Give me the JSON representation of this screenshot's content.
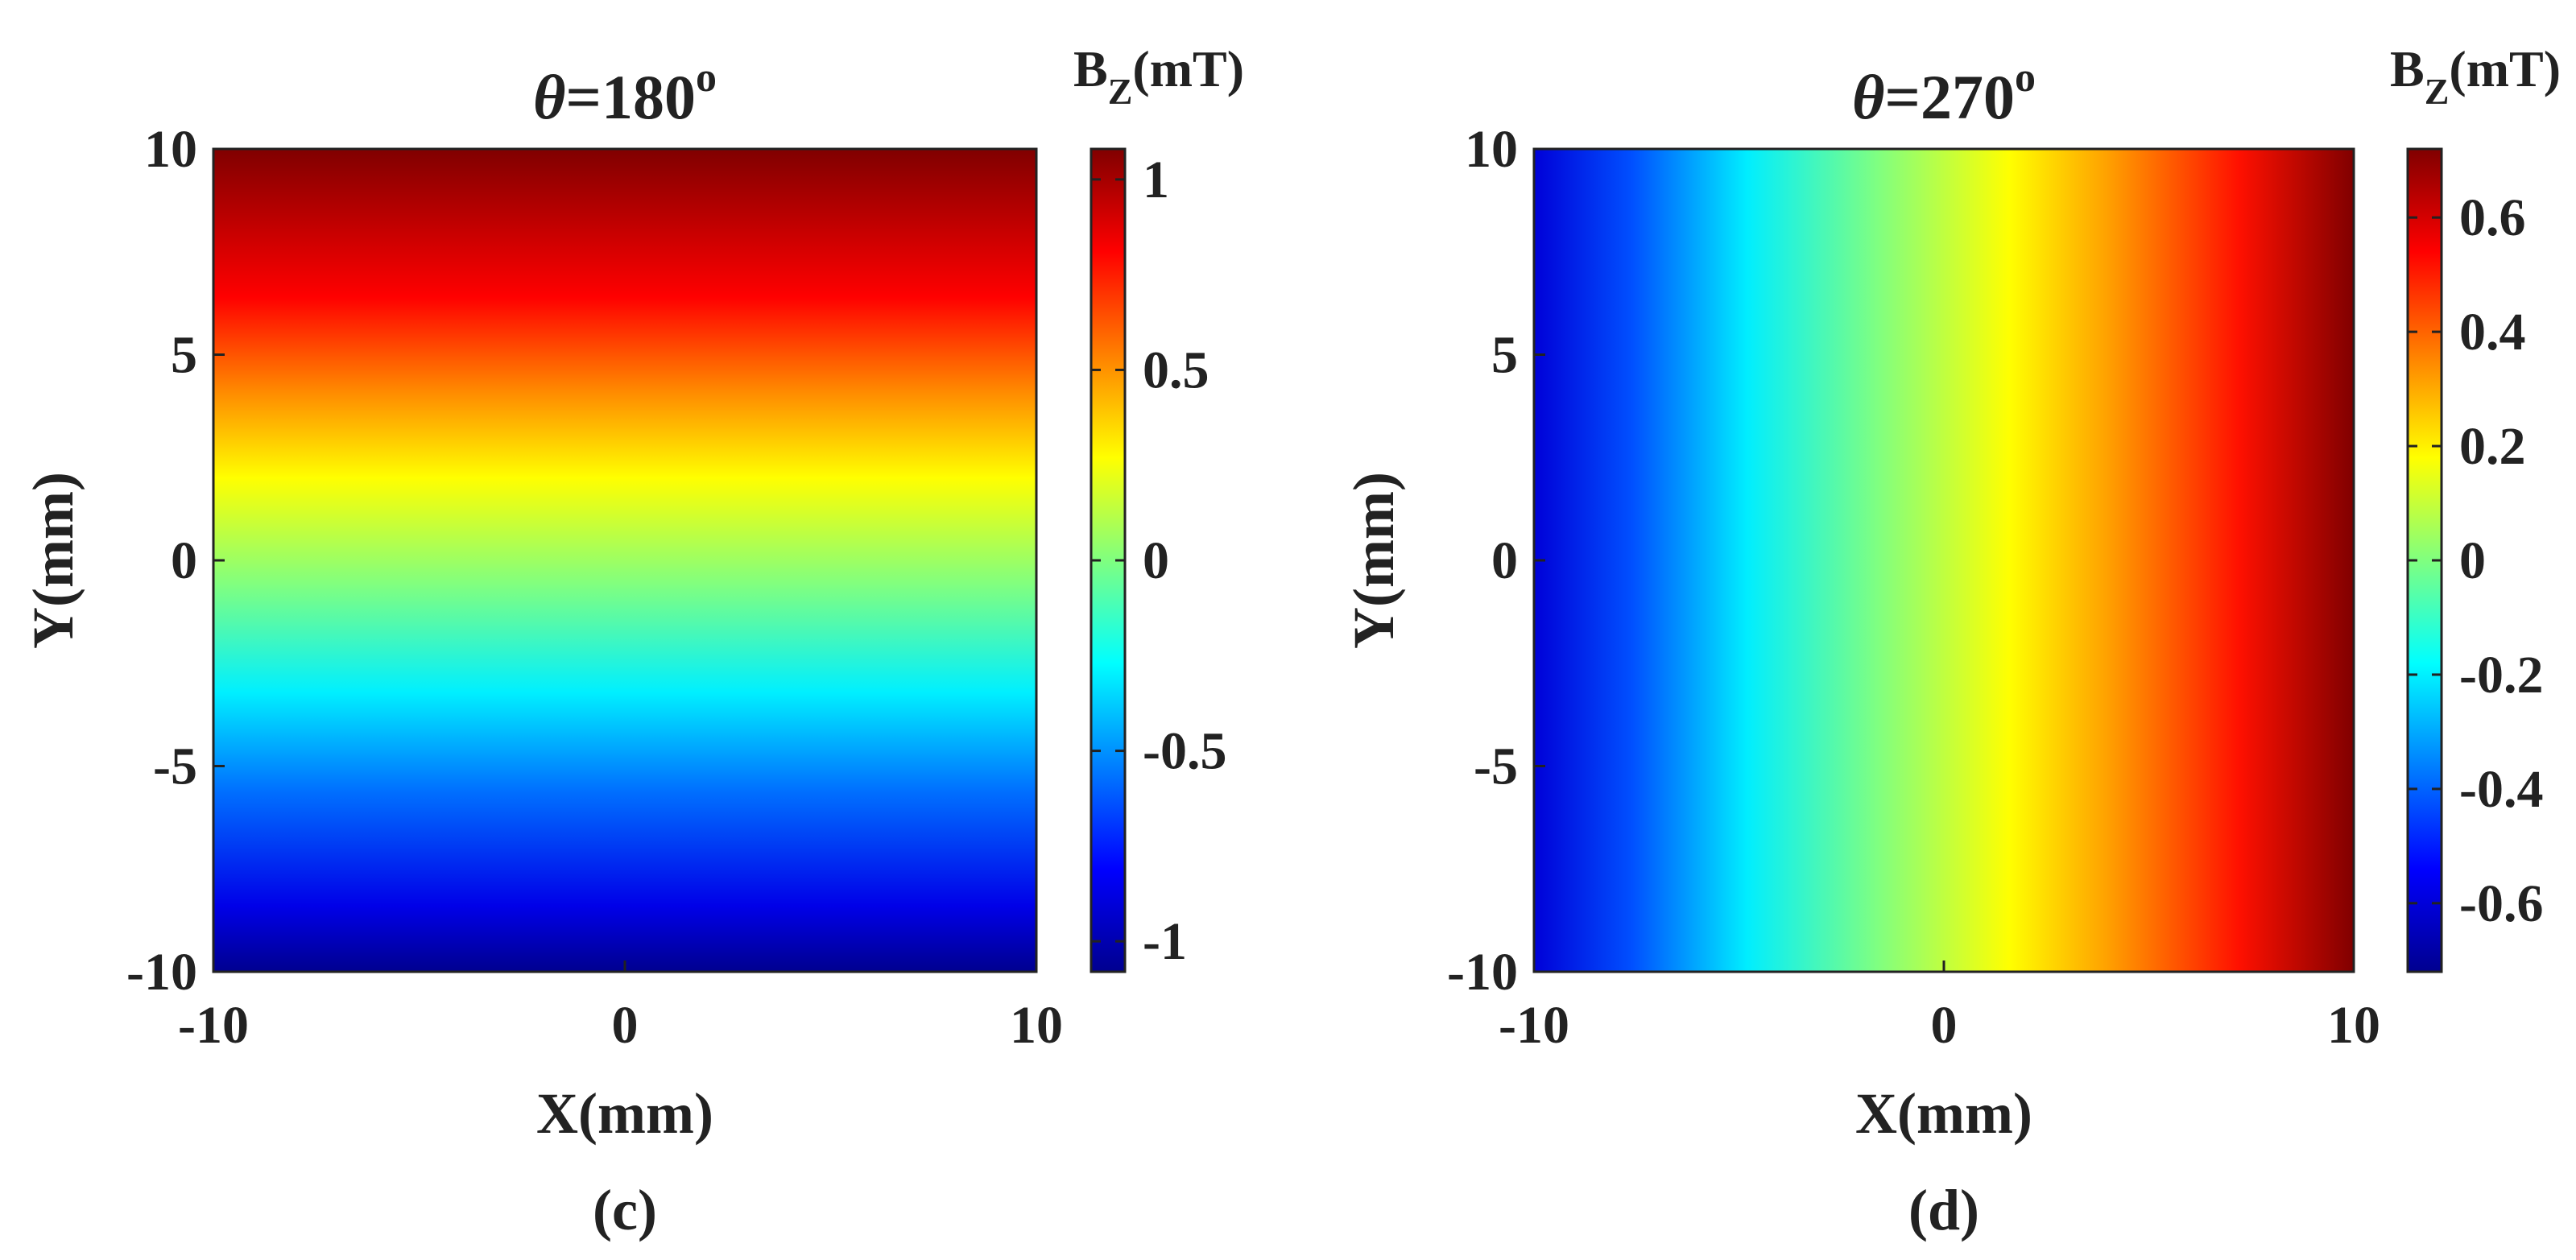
{
  "chart_data": [
    {
      "type": "heatmap",
      "title": "θ=180°",
      "title_symbol": "θ",
      "title_text": "=180",
      "title_degree": "o",
      "xlabel": "X(mm)",
      "ylabel": "Y(mm)",
      "xlim": [
        -10,
        10
      ],
      "ylim": [
        -10,
        10
      ],
      "x_ticks": [
        -10,
        0,
        10
      ],
      "y_ticks": [
        10,
        5,
        0,
        -5,
        -10
      ],
      "x_tick_labels": [
        "-10",
        "0",
        "10"
      ],
      "y_tick_labels": [
        "10",
        "5",
        "0",
        "-5",
        "-10"
      ],
      "colormap": "jet",
      "gradient_direction": "vertical",
      "field_description": "Bz varies with Y: maximum at Y=10, minimum at Y=-10",
      "colorbar": {
        "title_main": "B",
        "title_sub": "Z",
        "title_unit": "(mT)",
        "range": [
          -1.08,
          1.08
        ],
        "ticks": [
          1,
          0.5,
          0,
          -0.5,
          -1
        ],
        "tick_labels": [
          "1",
          "0.5",
          "0",
          "-0.5",
          "-1"
        ]
      },
      "panel_label": "(c)"
    },
    {
      "type": "heatmap",
      "title": "θ=270°",
      "title_symbol": "θ",
      "title_text": "=270",
      "title_degree": "o",
      "xlabel": "X(mm)",
      "ylabel": "Y(mm)",
      "xlim": [
        -10,
        10
      ],
      "ylim": [
        -10,
        10
      ],
      "x_ticks": [
        -10,
        0,
        10
      ],
      "y_ticks": [
        10,
        5,
        0,
        -5,
        -10
      ],
      "x_tick_labels": [
        "-10",
        "0",
        "10"
      ],
      "y_tick_labels": [
        "10",
        "5",
        "0",
        "-5",
        "-10"
      ],
      "colormap": "jet",
      "gradient_direction": "horizontal",
      "field_description": "Bz varies with X: minimum at X=-10, maximum at X=10",
      "colorbar": {
        "title_main": "B",
        "title_sub": "Z",
        "title_unit": "(mT)",
        "range": [
          -0.72,
          0.72
        ],
        "ticks": [
          0.6,
          0.4,
          0.2,
          0,
          -0.2,
          -0.4,
          -0.6
        ],
        "tick_labels": [
          "0.6",
          "0.4",
          "0.2",
          "0",
          "-0.2",
          "-0.4",
          "-0.6"
        ]
      },
      "panel_label": "(d)"
    }
  ]
}
